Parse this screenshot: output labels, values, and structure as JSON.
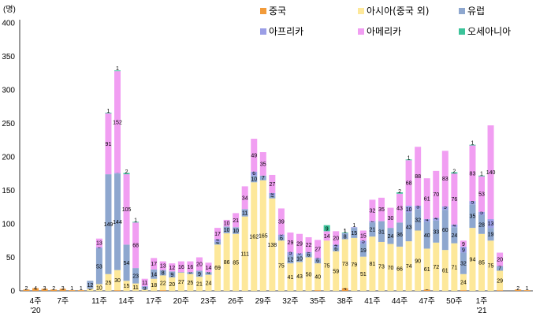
{
  "chart_data": {
    "type": "bar",
    "stacked": true,
    "unit": "(명)",
    "y_ticks": [
      0,
      50,
      100,
      150,
      200,
      250,
      300,
      350,
      400
    ],
    "ylim": [
      0,
      400
    ],
    "grid": false,
    "legend_position": "top-right",
    "x_tick_labels": [
      {
        "week": 1,
        "lines": [
          "4주",
          "'20"
        ]
      },
      {
        "week": 4,
        "lines": [
          "7주"
        ]
      },
      {
        "week": 8,
        "lines": [
          "11주"
        ]
      },
      {
        "week": 11,
        "lines": [
          "14주"
        ]
      },
      {
        "week": 14,
        "lines": [
          "17주"
        ]
      },
      {
        "week": 17,
        "lines": [
          "20주"
        ]
      },
      {
        "week": 20,
        "lines": [
          "23주"
        ]
      },
      {
        "week": 23,
        "lines": [
          "26주"
        ]
      },
      {
        "week": 26,
        "lines": [
          "29주"
        ]
      },
      {
        "week": 29,
        "lines": [
          "32주"
        ]
      },
      {
        "week": 32,
        "lines": [
          "35주"
        ]
      },
      {
        "week": 35,
        "lines": [
          "38주"
        ]
      },
      {
        "week": 38,
        "lines": [
          "41주"
        ]
      },
      {
        "week": 41,
        "lines": [
          "44주"
        ]
      },
      {
        "week": 44,
        "lines": [
          "47주"
        ]
      },
      {
        "week": 47,
        "lines": [
          "50주"
        ]
      },
      {
        "week": 50,
        "lines": [
          "1주",
          "'21"
        ]
      }
    ],
    "series": [
      {
        "name": "중국",
        "color": "#f29b3a",
        "values": [
          2,
          4,
          3,
          2,
          3,
          1,
          1,
          0,
          0,
          0,
          1,
          0,
          0,
          0,
          0,
          1,
          0,
          0,
          0,
          0,
          0,
          0,
          0,
          0,
          0,
          0,
          0,
          0,
          0,
          0,
          0,
          0,
          1,
          0,
          0,
          4,
          0,
          0,
          0,
          0,
          0,
          0,
          0,
          0,
          2,
          0,
          0,
          0,
          1,
          0,
          0,
          0,
          1,
          0,
          2,
          1,
          0,
          0,
          0
        ]
      },
      {
        "name": "아시아(중국 외)",
        "color": "#fde89a",
        "values": [
          0,
          0,
          0,
          0,
          0,
          0,
          0,
          3,
          10,
          25,
          30,
          15,
          11,
          2,
          18,
          22,
          20,
          27,
          25,
          21,
          24,
          69,
          86,
          85,
          111,
          162,
          165,
          138,
          75,
          41,
          43,
          50,
          40,
          75,
          59,
          73,
          79,
          51,
          81,
          73,
          70,
          66,
          74,
          90,
          61,
          72,
          61,
          71,
          24,
          94,
          85,
          75,
          29,
          0,
          0,
          0,
          0,
          0,
          0
        ]
      },
      {
        "name": "유럽",
        "color": "#8ea7cf",
        "values": [
          0,
          0,
          0,
          0,
          0,
          0,
          0,
          12,
          53,
          149,
          144,
          54,
          23,
          4,
          14,
          8,
          9,
          1,
          3,
          9,
          4,
          4,
          10,
          10,
          11,
          10,
          7,
          4,
          6,
          12,
          10,
          6,
          6,
          0,
          6,
          8,
          15,
          19,
          21,
          31,
          24,
          36,
          43,
          32,
          40,
          33,
          60,
          24,
          32,
          35,
          28,
          19,
          7,
          0,
          0,
          0,
          0,
          0,
          0
        ]
      },
      {
        "name": "아프리카",
        "color": "#9b9ee6",
        "values": [
          0,
          0,
          0,
          0,
          0,
          0,
          0,
          0,
          2,
          0,
          1,
          0,
          0,
          1,
          0,
          0,
          0,
          0,
          0,
          0,
          0,
          4,
          0,
          0,
          0,
          6,
          0,
          4,
          3,
          5,
          3,
          2,
          2,
          0,
          4,
          1,
          1,
          5,
          2,
          0,
          0,
          0,
          10,
          5,
          4,
          4,
          5,
          4,
          9,
          5,
          5,
          13,
          0,
          0,
          0,
          0,
          0,
          0,
          0
        ]
      },
      {
        "name": "아메리카",
        "color": "#f19ef2",
        "values": [
          0,
          0,
          0,
          0,
          0,
          0,
          0,
          0,
          13,
          91,
          152,
          105,
          68,
          11,
          17,
          13,
          12,
          16,
          16,
          20,
          14,
          17,
          10,
          21,
          34,
          49,
          35,
          27,
          39,
          29,
          29,
          22,
          27,
          14,
          20,
          0,
          0,
          15,
          32,
          35,
          30,
          43,
          68,
          88,
          61,
          70,
          83,
          76,
          9,
          83,
          53,
          140,
          20,
          0,
          0,
          0,
          0,
          0,
          0
        ]
      },
      {
        "name": "오세아니아",
        "color": "#3cc39a",
        "values": [
          0,
          0,
          0,
          0,
          0,
          0,
          0,
          0,
          0,
          1,
          1,
          2,
          1,
          0,
          0,
          0,
          0,
          0,
          0,
          0,
          0,
          0,
          0,
          0,
          0,
          0,
          0,
          0,
          0,
          0,
          0,
          0,
          0,
          9,
          0,
          1,
          0,
          0,
          0,
          0,
          0,
          2,
          1,
          0,
          0,
          0,
          0,
          2,
          0,
          1,
          1,
          0,
          0,
          0,
          0,
          0,
          0,
          0,
          0
        ]
      }
    ]
  }
}
